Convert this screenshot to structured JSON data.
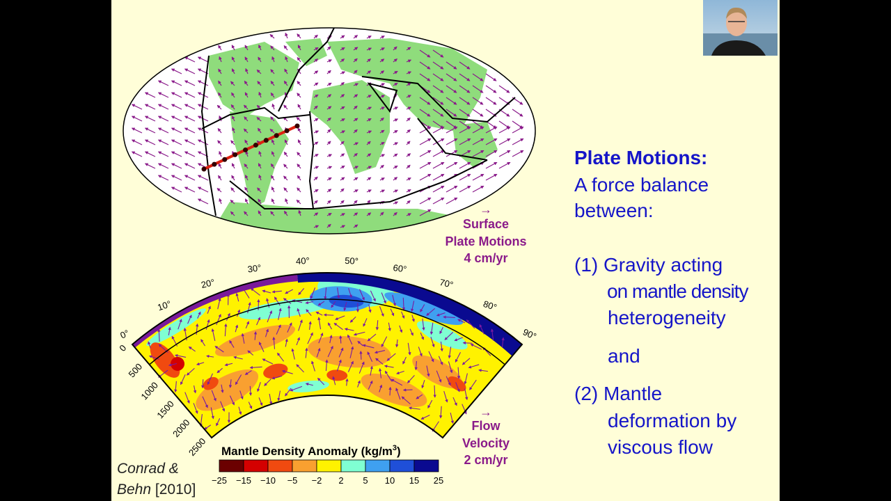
{
  "figure": {
    "map_legend": {
      "arrow": "→",
      "lines": [
        "Surface",
        "Plate Motions",
        "4 cm/yr"
      ]
    },
    "section_legend": {
      "arrow": "→",
      "lines": [
        "Flow",
        "Velocity",
        "2 cm/yr"
      ]
    },
    "angle_labels": [
      "0°",
      "10°",
      "20°",
      "30°",
      "40°",
      "50°",
      "60°",
      "70°",
      "80°",
      "90°"
    ],
    "depth_labels": [
      "0",
      "500",
      "1000",
      "1500",
      "2000",
      "2500"
    ],
    "colorbar": {
      "title": "Mantle Density Anomaly (kg/m",
      "title_sup": "3",
      "title_end": ")",
      "labels": [
        "−25",
        "−15",
        "−10",
        "−5",
        "−2",
        "2",
        "5",
        "10",
        "15",
        "25"
      ],
      "colors": [
        "#6b0000",
        "#d40000",
        "#f04a10",
        "#f9a030",
        "#fff200",
        "#7fffd2",
        "#3fa0f0",
        "#1f4fd8",
        "#0a0a90"
      ]
    }
  },
  "citation": {
    "authors": "Conrad &",
    "second": "Behn",
    "year": "[2010]"
  },
  "text": {
    "heading": "Plate Motions:",
    "lines": [
      "A force balance",
      "between:",
      "(1) Gravity acting",
      "on mantle density",
      "heterogeneity",
      "and",
      "(2) Mantle",
      "deformation by",
      "viscous flow"
    ]
  }
}
